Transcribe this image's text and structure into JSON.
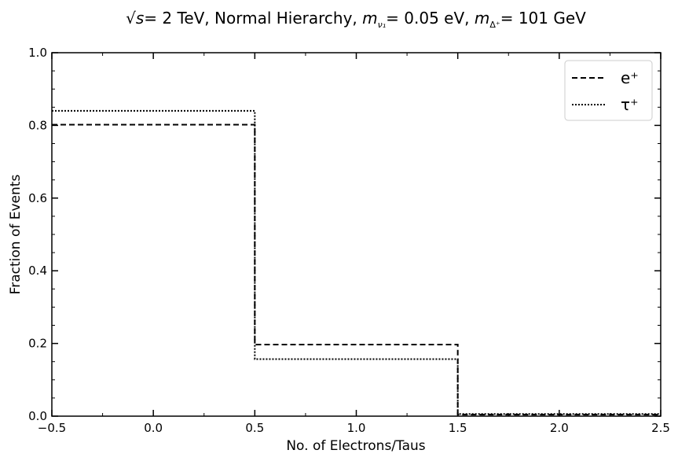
{
  "chart_data": {
    "type": "line",
    "step": true,
    "title": {
      "sqrt_s_symbol": "√s",
      "energy": "= 2 TeV, Normal Hierarchy, ",
      "mnu_symbol": "m",
      "mnu_sub": "ν₁",
      "mnu_value": "= 0.05 eV, ",
      "mdelta_symbol": "m",
      "mdelta_sub": "Δ⁺",
      "mdelta_value": "= 101 GeV"
    },
    "xlabel": "No. of Electrons/Taus",
    "ylabel": "Fraction of Events",
    "xlim": [
      -0.5,
      2.5
    ],
    "ylim": [
      0.0,
      1.0
    ],
    "x_ticks": [
      "−0.5",
      "0.0",
      "0.5",
      "1.0",
      "1.5",
      "2.0",
      "2.5"
    ],
    "y_ticks": [
      "0.0",
      "0.2",
      "0.4",
      "0.6",
      "0.8",
      "1.0"
    ],
    "bin_edges": [
      -0.5,
      0.5,
      1.5,
      2.5
    ],
    "series": [
      {
        "name": "e⁺",
        "style": "dashed",
        "color": "#000000",
        "values": [
          0.802,
          0.197,
          0.004
        ]
      },
      {
        "name": "τ⁺",
        "style": "dotted",
        "color": "#000000",
        "values": [
          0.84,
          0.157,
          0.006
        ]
      }
    ],
    "legend_position": "top-right",
    "grid": false
  }
}
